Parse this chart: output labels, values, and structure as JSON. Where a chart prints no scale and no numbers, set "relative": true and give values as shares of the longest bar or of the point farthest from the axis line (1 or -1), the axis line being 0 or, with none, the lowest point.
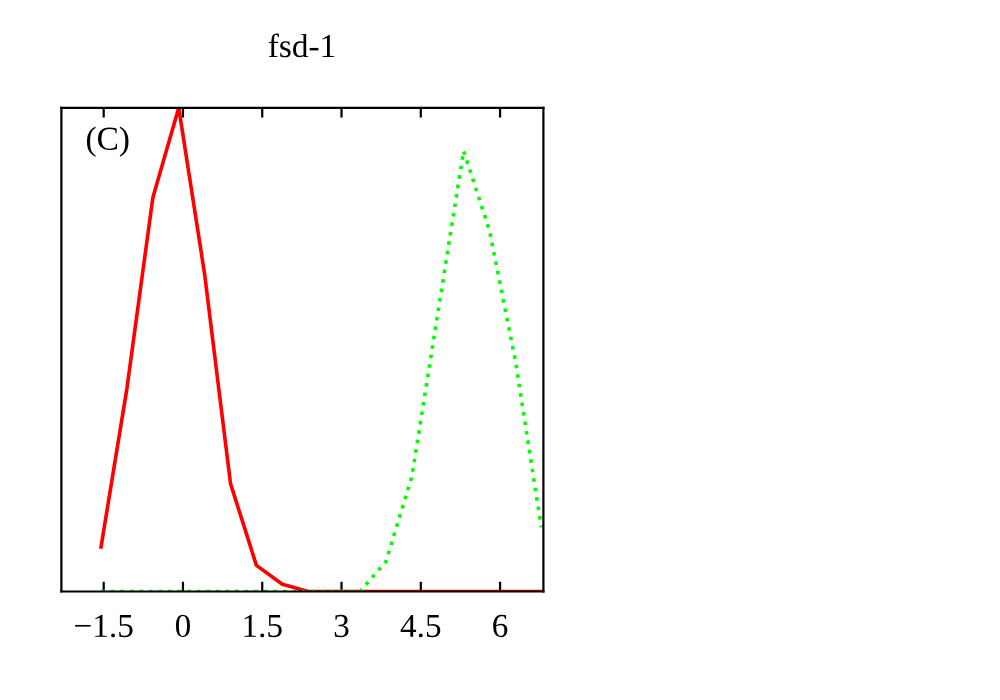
{
  "chart_data": {
    "type": "line",
    "title": "fsd-1",
    "annotations": [
      "(C)"
    ],
    "relative": true,
    "xlim": [
      -2.3,
      6.82
    ],
    "xticks": [
      {
        "value": -1.5,
        "label": "−1.5"
      },
      0,
      1.5,
      3,
      4.5,
      6
    ],
    "series": [
      {
        "color": "#ff0000",
        "line_style": "solid",
        "x": [
          -1.55,
          -1.06,
          -0.57,
          -0.08,
          0.41,
          0.9,
          1.39,
          1.88,
          2.37,
          6.82
        ],
        "values": [
          0.092,
          0.42,
          0.814,
          1.0,
          0.656,
          0.223,
          0.054,
          0.015,
          0.0,
          0.0
        ]
      },
      {
        "color": "#00ff00",
        "line_style": "dotted",
        "x": [
          -1.55,
          2.86,
          3.35,
          3.84,
          4.33,
          4.82,
          5.31,
          5.8,
          6.29,
          6.78
        ],
        "values": [
          0.0,
          0.0,
          0.0,
          0.062,
          0.237,
          0.574,
          0.911,
          0.746,
          0.477,
          0.133
        ]
      }
    ]
  }
}
